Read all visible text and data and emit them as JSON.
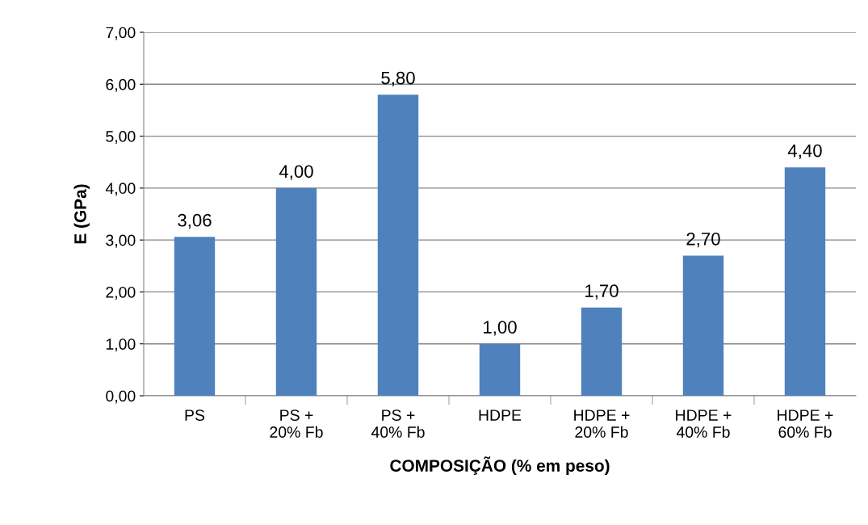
{
  "chart_data": {
    "type": "bar",
    "xlabel": "COMPOSIÇÃO (% em peso)",
    "ylabel": "E (GPa)",
    "categories": [
      "PS",
      "PS +\n20% Fb",
      "PS +\n40% Fb",
      "HDPE",
      "HDPE +\n20% Fb",
      "HDPE +\n40% Fb",
      "HDPE +\n60% Fb"
    ],
    "values": [
      3.06,
      4.0,
      5.8,
      1.0,
      1.7,
      2.7,
      4.4
    ],
    "value_labels": [
      "3,06",
      "4,00",
      "5,80",
      "1,00",
      "1,70",
      "2,70",
      "4,40"
    ],
    "color": "#4f81bd",
    "ylim": [
      0,
      7
    ],
    "yticks": [
      {
        "value": 0,
        "label": "0,00"
      },
      {
        "value": 1,
        "label": "1,00"
      },
      {
        "value": 2,
        "label": "2,00"
      },
      {
        "value": 3,
        "label": "3,00"
      },
      {
        "value": 4,
        "label": "4,00"
      },
      {
        "value": 5,
        "label": "5,00"
      },
      {
        "value": 6,
        "label": "6,00"
      },
      {
        "value": 7,
        "label": "7,00"
      }
    ],
    "grid": "y",
    "legend": false
  }
}
